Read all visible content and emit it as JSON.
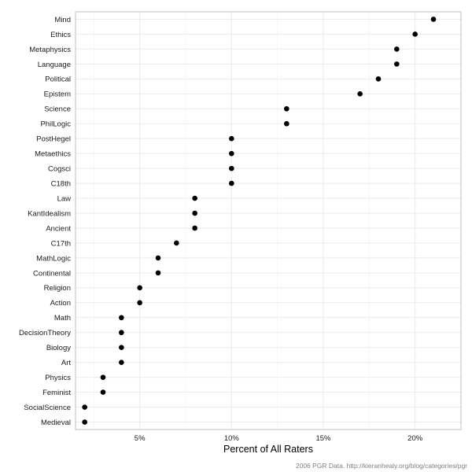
{
  "chart_data": {
    "type": "scatter",
    "orientation": "horizontal-dot-plot",
    "xlabel": "Percent of All Raters",
    "ylabel": "",
    "title": "",
    "caption": "2006 PGR Data. http://kieranhealy.org/blog/categories/pgr",
    "x_ticks": [
      {
        "value": 5,
        "label": "5%"
      },
      {
        "value": 10,
        "label": "10%"
      },
      {
        "value": 15,
        "label": "15%"
      },
      {
        "value": 20,
        "label": "20%"
      }
    ],
    "xlim": [
      1.5,
      22.5
    ],
    "grid": true,
    "categories": [
      "Mind",
      "Ethics",
      "Metaphysics",
      "Language",
      "Political",
      "Epistem",
      "Science",
      "PhilLogic",
      "PostHegel",
      "Metaethics",
      "Cogsci",
      "C18th",
      "Law",
      "KantIdealism",
      "Ancient",
      "C17th",
      "MathLogic",
      "Continental",
      "Religion",
      "Action",
      "Math",
      "DecisionTheory",
      "Biology",
      "Art",
      "Physics",
      "Feminist",
      "SocialScience",
      "Medieval"
    ],
    "values": [
      21,
      20,
      19,
      19,
      18,
      17,
      13,
      13,
      10,
      10,
      10,
      10,
      8,
      8,
      8,
      7,
      6,
      6,
      5,
      5,
      4,
      4,
      4,
      4,
      3,
      3,
      2,
      2
    ],
    "colors": {
      "panel_border": "#b3b3b3",
      "major_grid": "#ebebeb",
      "minor_grid": "#f5f5f5",
      "point": "#000000"
    }
  }
}
